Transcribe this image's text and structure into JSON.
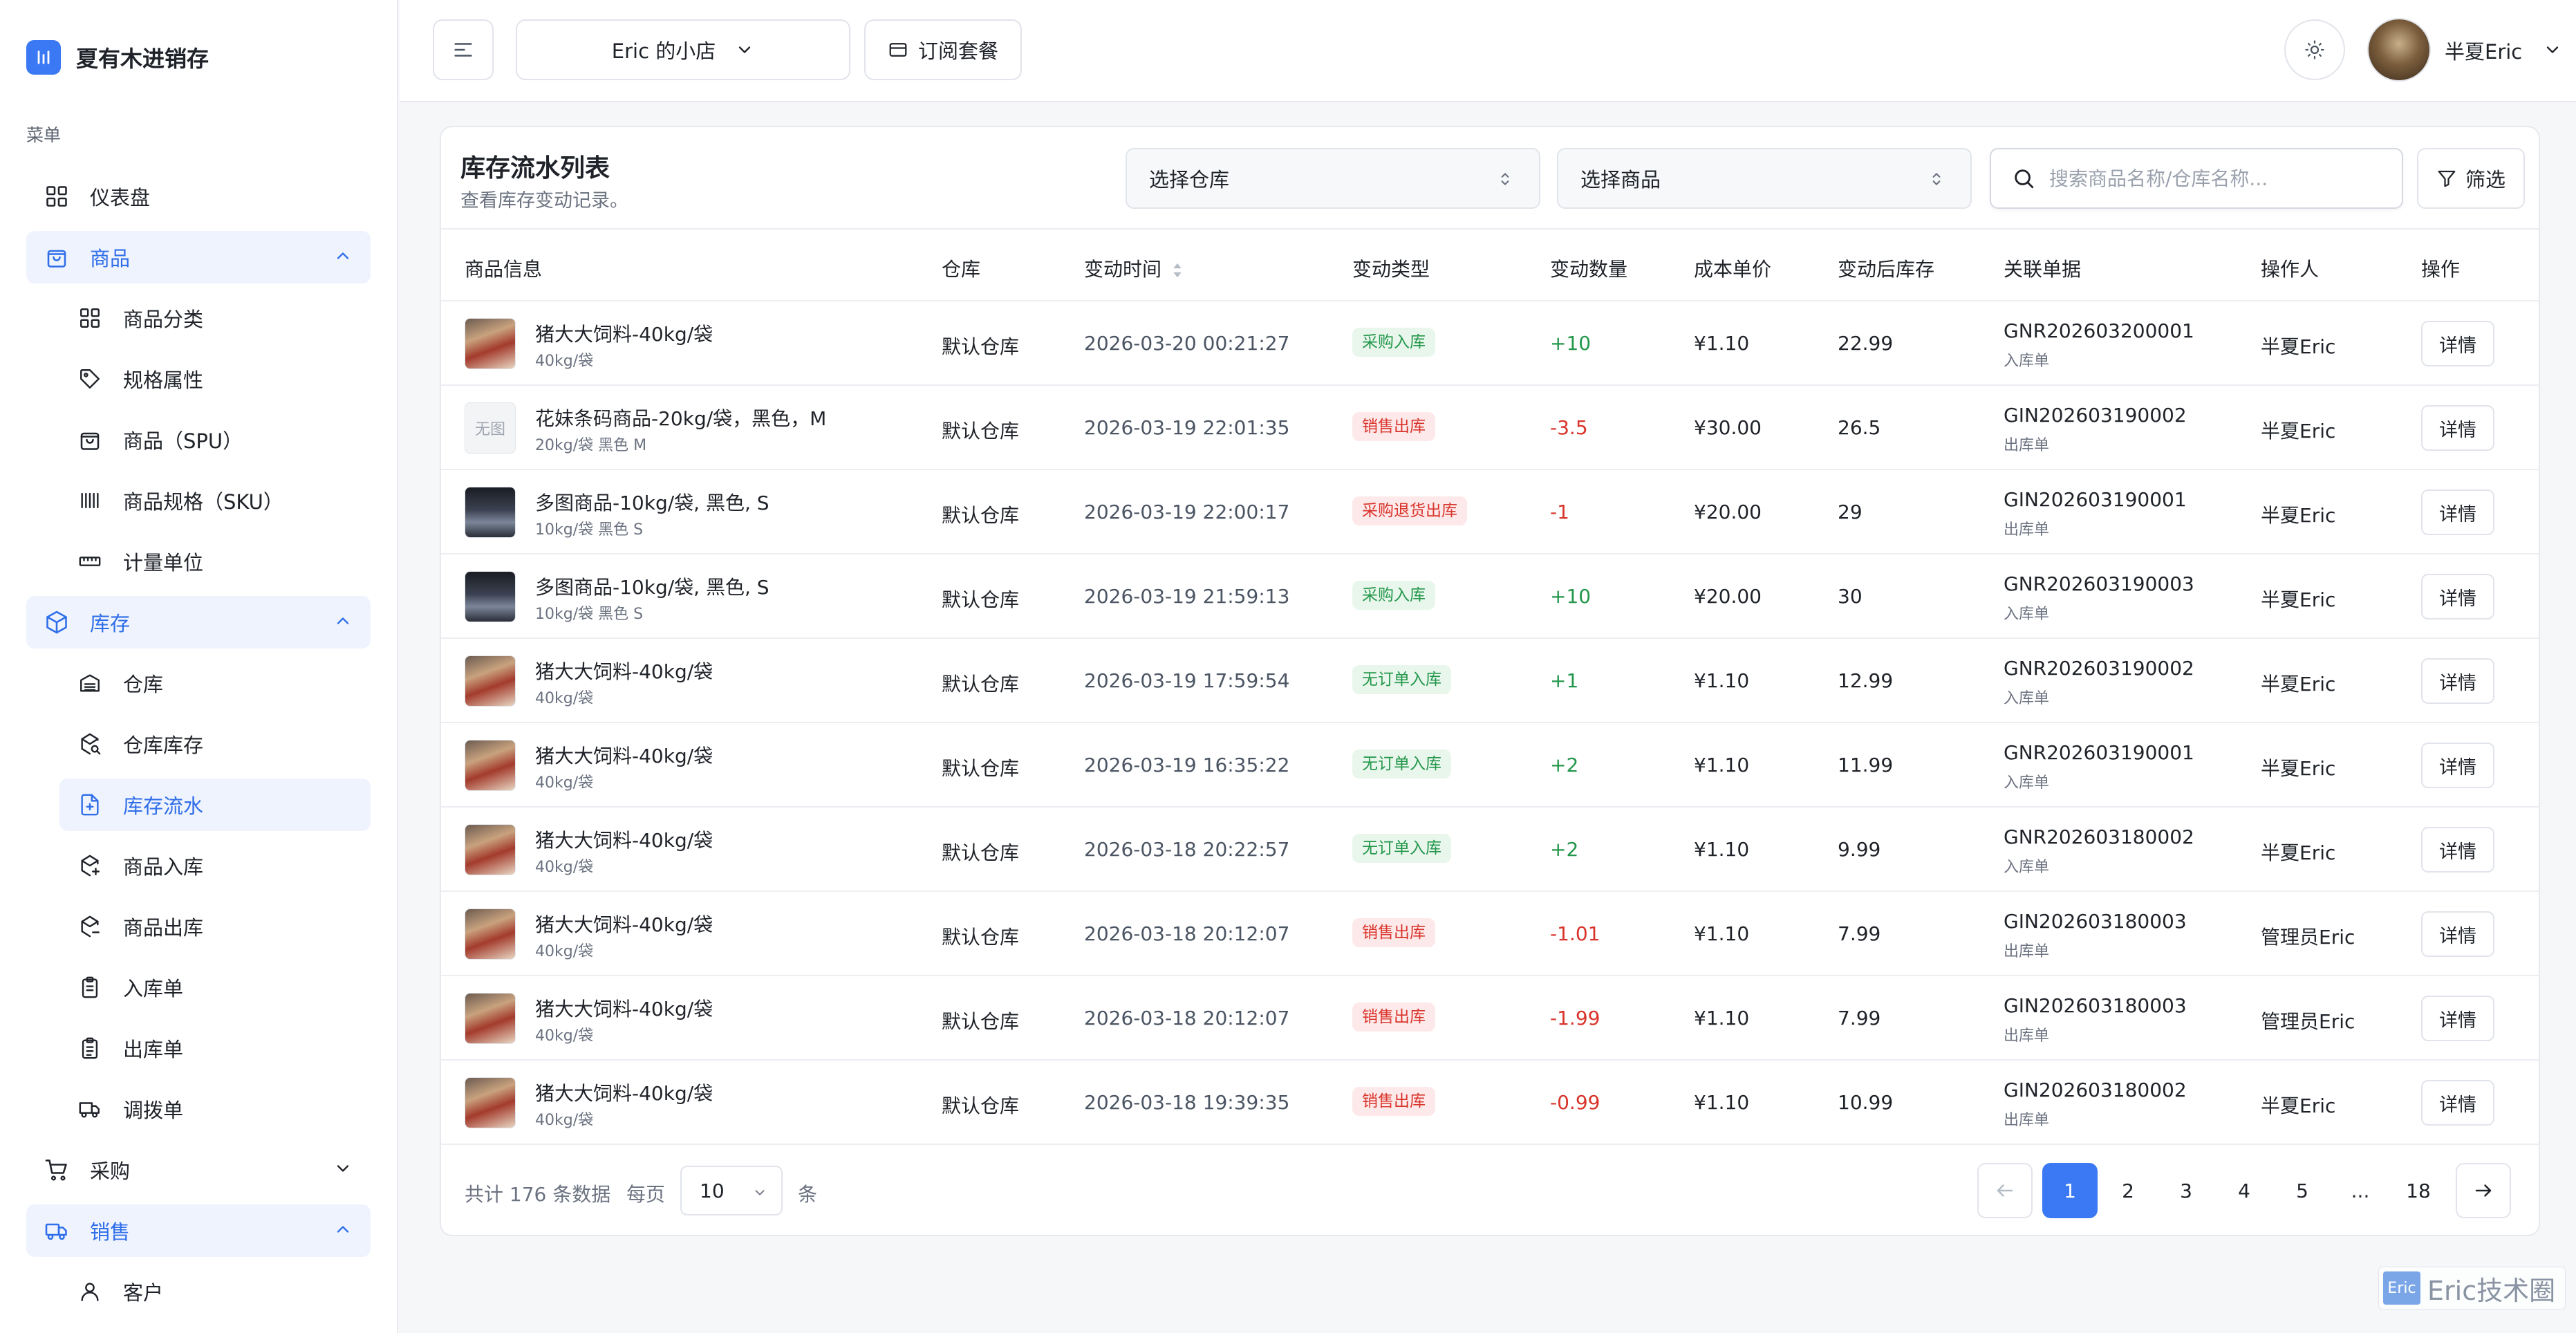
{
  "app": {
    "name": "夏有木进销存",
    "menu_title": "菜单"
  },
  "sidebar": {
    "items": [
      {
        "label": "仪表盘",
        "icon": "dashboard-icon",
        "level": 0
      },
      {
        "label": "商品",
        "icon": "shopping-bag-icon",
        "level": 0,
        "expanded": true
      },
      {
        "label": "商品分类",
        "icon": "category-grid-icon",
        "level": 1
      },
      {
        "label": "规格属性",
        "icon": "tag-icon",
        "level": 1
      },
      {
        "label": "商品（SPU）",
        "icon": "shopping-bag-icon",
        "level": 1
      },
      {
        "label": "商品规格（SKU）",
        "icon": "barcode-icon",
        "level": 1
      },
      {
        "label": "计量单位",
        "icon": "ruler-icon",
        "level": 1
      },
      {
        "label": "库存",
        "icon": "package-icon",
        "level": 0,
        "expanded": true
      },
      {
        "label": "仓库",
        "icon": "warehouse-icon",
        "level": 1
      },
      {
        "label": "仓库库存",
        "icon": "package-search-icon",
        "level": 1
      },
      {
        "label": "库存流水",
        "icon": "file-flow-icon",
        "level": 1,
        "active": true
      },
      {
        "label": "商品入库",
        "icon": "package-plus-icon",
        "level": 1
      },
      {
        "label": "商品出库",
        "icon": "package-minus-icon",
        "level": 1
      },
      {
        "label": "入库单",
        "icon": "clipboard-icon",
        "level": 1
      },
      {
        "label": "出库单",
        "icon": "clipboard-list-icon",
        "level": 1
      },
      {
        "label": "调拨单",
        "icon": "truck-icon",
        "level": 1
      },
      {
        "label": "采购",
        "icon": "cart-icon",
        "level": 0,
        "expanded": false
      },
      {
        "label": "销售",
        "icon": "delivery-icon",
        "level": 0,
        "expanded": true
      },
      {
        "label": "客户",
        "icon": "user-icon",
        "level": 1
      }
    ]
  },
  "header": {
    "shop_name": "Eric 的小店",
    "subscribe_label": "订阅套餐",
    "user_name": "半夏Eric"
  },
  "page": {
    "title": "库存流水列表",
    "description": "查看库存变动记录。",
    "warehouse_filter": "选择仓库",
    "goods_filter": "选择商品",
    "search_placeholder": "搜索商品名称/仓库名称...",
    "filter_label": "筛选"
  },
  "table": {
    "columns": [
      "商品信息",
      "仓库",
      "变动时间",
      "变动类型",
      "变动数量",
      "成本单价",
      "变动后库存",
      "关联单据",
      "操作人",
      "操作"
    ],
    "rows": [
      {
        "name": "猪大大饲料-40kg/袋",
        "spec": "40kg/袋",
        "thumb": "pig",
        "warehouse": "默认仓库",
        "time": "2026-03-20 00:21:27",
        "type": "采购入库",
        "direction": "in",
        "qty": "+10",
        "cost": "¥1.10",
        "after": "22.99",
        "doc": "GNR202603200001",
        "doc_type": "入库单",
        "operator": "半夏Eric",
        "action": "详情"
      },
      {
        "name": "花妹条码商品-20kg/袋，黑色，M",
        "spec": "20kg/袋 黑色 M",
        "thumb": "none",
        "thumb_text": "无图",
        "warehouse": "默认仓库",
        "time": "2026-03-19 22:01:35",
        "type": "销售出库",
        "direction": "out",
        "qty": "-3.5",
        "cost": "¥30.00",
        "after": "26.5",
        "doc": "GIN202603190002",
        "doc_type": "出库单",
        "operator": "半夏Eric",
        "action": "详情"
      },
      {
        "name": "多图商品-10kg/袋, 黑色, S",
        "spec": "10kg/袋 黑色 S",
        "thumb": "city",
        "warehouse": "默认仓库",
        "time": "2026-03-19 22:00:17",
        "type": "采购退货出库",
        "direction": "out",
        "qty": "-1",
        "cost": "¥20.00",
        "after": "29",
        "doc": "GIN202603190001",
        "doc_type": "出库单",
        "operator": "半夏Eric",
        "action": "详情"
      },
      {
        "name": "多图商品-10kg/袋, 黑色, S",
        "spec": "10kg/袋 黑色 S",
        "thumb": "city",
        "warehouse": "默认仓库",
        "time": "2026-03-19 21:59:13",
        "type": "采购入库",
        "direction": "in",
        "qty": "+10",
        "cost": "¥20.00",
        "after": "30",
        "doc": "GNR202603190003",
        "doc_type": "入库单",
        "operator": "半夏Eric",
        "action": "详情"
      },
      {
        "name": "猪大大饲料-40kg/袋",
        "spec": "40kg/袋",
        "thumb": "pig",
        "warehouse": "默认仓库",
        "time": "2026-03-19 17:59:54",
        "type": "无订单入库",
        "direction": "in",
        "qty": "+1",
        "cost": "¥1.10",
        "after": "12.99",
        "doc": "GNR202603190002",
        "doc_type": "入库单",
        "operator": "半夏Eric",
        "action": "详情"
      },
      {
        "name": "猪大大饲料-40kg/袋",
        "spec": "40kg/袋",
        "thumb": "pig",
        "warehouse": "默认仓库",
        "time": "2026-03-19 16:35:22",
        "type": "无订单入库",
        "direction": "in",
        "qty": "+2",
        "cost": "¥1.10",
        "after": "11.99",
        "doc": "GNR202603190001",
        "doc_type": "入库单",
        "operator": "半夏Eric",
        "action": "详情"
      },
      {
        "name": "猪大大饲料-40kg/袋",
        "spec": "40kg/袋",
        "thumb": "pig",
        "warehouse": "默认仓库",
        "time": "2026-03-18 20:22:57",
        "type": "无订单入库",
        "direction": "in",
        "qty": "+2",
        "cost": "¥1.10",
        "after": "9.99",
        "doc": "GNR202603180002",
        "doc_type": "入库单",
        "operator": "半夏Eric",
        "action": "详情"
      },
      {
        "name": "猪大大饲料-40kg/袋",
        "spec": "40kg/袋",
        "thumb": "pig",
        "warehouse": "默认仓库",
        "time": "2026-03-18 20:12:07",
        "type": "销售出库",
        "direction": "out",
        "qty": "-1.01",
        "cost": "¥1.10",
        "after": "7.99",
        "doc": "GIN202603180003",
        "doc_type": "出库单",
        "operator": "管理员Eric",
        "action": "详情"
      },
      {
        "name": "猪大大饲料-40kg/袋",
        "spec": "40kg/袋",
        "thumb": "pig",
        "warehouse": "默认仓库",
        "time": "2026-03-18 20:12:07",
        "type": "销售出库",
        "direction": "out",
        "qty": "-1.99",
        "cost": "¥1.10",
        "after": "7.99",
        "doc": "GIN202603180003",
        "doc_type": "出库单",
        "operator": "管理员Eric",
        "action": "详情"
      },
      {
        "name": "猪大大饲料-40kg/袋",
        "spec": "40kg/袋",
        "thumb": "pig",
        "warehouse": "默认仓库",
        "time": "2026-03-18 19:39:35",
        "type": "销售出库",
        "direction": "out",
        "qty": "-0.99",
        "cost": "¥1.10",
        "after": "10.99",
        "doc": "GIN202603180002",
        "doc_type": "出库单",
        "operator": "半夏Eric",
        "action": "详情"
      }
    ]
  },
  "pagination": {
    "total_text": "共计 176 条数据",
    "per_page_label": "每页",
    "page_size": "10",
    "unit_label": "条",
    "pages": [
      "1",
      "2",
      "3",
      "4",
      "5",
      "...",
      "18"
    ],
    "current_page": "1"
  },
  "watermark": {
    "badge": "Eric",
    "text": "Eric技术圈"
  },
  "colors": {
    "accent": "#3b78f3",
    "positive": "#23974a",
    "negative": "#d9342b"
  }
}
